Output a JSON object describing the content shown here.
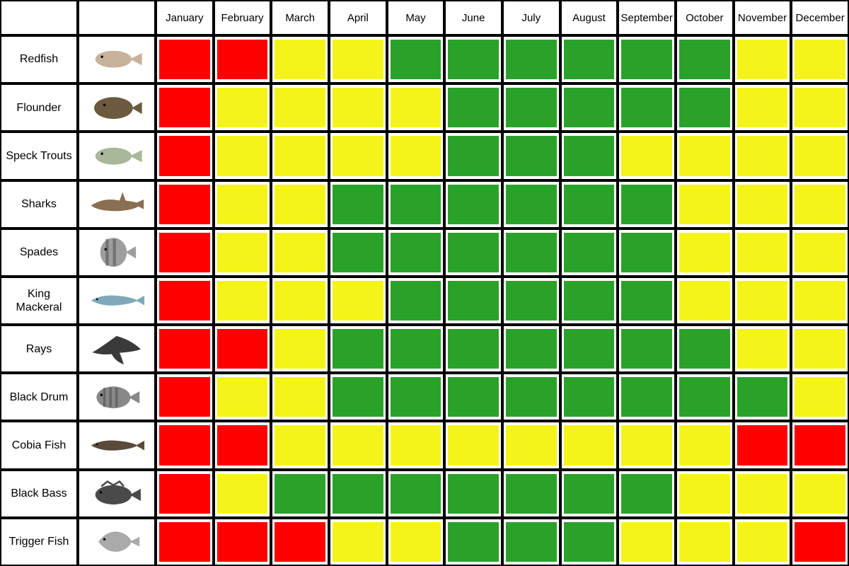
{
  "chart": {
    "type": "heatmap",
    "background_color": "#ffffff",
    "border_color": "#000000",
    "border_width": 2,
    "cell_padding": 4,
    "header_fontsize": 15,
    "label_fontsize": 16,
    "colors": {
      "red": "#ff0000",
      "yellow": "#f4f41a",
      "green": "#2aa22a"
    },
    "months": [
      "January",
      "February",
      "March",
      "April",
      "May",
      "June",
      "July",
      "August",
      "September",
      "October",
      "November",
      "December"
    ],
    "species": [
      {
        "name": "Redfish",
        "fish_color": "#c9b29b",
        "shape": "fish",
        "status": [
          "red",
          "red",
          "yellow",
          "yellow",
          "green",
          "green",
          "green",
          "green",
          "green",
          "green",
          "yellow",
          "yellow"
        ]
      },
      {
        "name": "Flounder",
        "fish_color": "#6b5a3e",
        "shape": "flatfish",
        "status": [
          "red",
          "yellow",
          "yellow",
          "yellow",
          "yellow",
          "green",
          "green",
          "green",
          "green",
          "green",
          "yellow",
          "yellow"
        ]
      },
      {
        "name": "Speck Trouts",
        "fish_color": "#a8b898",
        "shape": "fish",
        "status": [
          "red",
          "yellow",
          "yellow",
          "yellow",
          "yellow",
          "green",
          "green",
          "green",
          "yellow",
          "yellow",
          "yellow",
          "yellow"
        ]
      },
      {
        "name": "Sharks",
        "fish_color": "#8a6f52",
        "shape": "shark",
        "status": [
          "red",
          "yellow",
          "yellow",
          "green",
          "green",
          "green",
          "green",
          "green",
          "green",
          "yellow",
          "yellow",
          "yellow"
        ]
      },
      {
        "name": "Spades",
        "fish_color": "#9e9e9e",
        "shape": "spadefish",
        "status": [
          "red",
          "yellow",
          "yellow",
          "green",
          "green",
          "green",
          "green",
          "green",
          "green",
          "yellow",
          "yellow",
          "yellow"
        ]
      },
      {
        "name": "King Mackeral",
        "fish_color": "#7fa8b8",
        "shape": "longfish",
        "status": [
          "red",
          "yellow",
          "yellow",
          "yellow",
          "green",
          "green",
          "green",
          "green",
          "green",
          "yellow",
          "yellow",
          "yellow"
        ]
      },
      {
        "name": "Rays",
        "fish_color": "#3a3a3a",
        "shape": "ray",
        "status": [
          "red",
          "red",
          "yellow",
          "green",
          "green",
          "green",
          "green",
          "green",
          "green",
          "green",
          "yellow",
          "yellow"
        ]
      },
      {
        "name": "Black Drum",
        "fish_color": "#888888",
        "shape": "drumfish",
        "status": [
          "red",
          "yellow",
          "yellow",
          "green",
          "green",
          "green",
          "green",
          "green",
          "green",
          "green",
          "green",
          "yellow"
        ]
      },
      {
        "name": "Cobia Fish",
        "fish_color": "#5a4a3a",
        "shape": "longfish",
        "status": [
          "red",
          "red",
          "yellow",
          "yellow",
          "yellow",
          "yellow",
          "yellow",
          "yellow",
          "yellow",
          "yellow",
          "red",
          "red"
        ]
      },
      {
        "name": "Black Bass",
        "fish_color": "#4a4a4a",
        "shape": "bass",
        "status": [
          "red",
          "yellow",
          "green",
          "green",
          "green",
          "green",
          "green",
          "green",
          "green",
          "yellow",
          "yellow",
          "yellow"
        ]
      },
      {
        "name": "Trigger Fish",
        "fish_color": "#aaaaaa",
        "shape": "trigger",
        "status": [
          "red",
          "red",
          "red",
          "yellow",
          "yellow",
          "green",
          "green",
          "green",
          "yellow",
          "yellow",
          "yellow",
          "red"
        ]
      }
    ]
  }
}
